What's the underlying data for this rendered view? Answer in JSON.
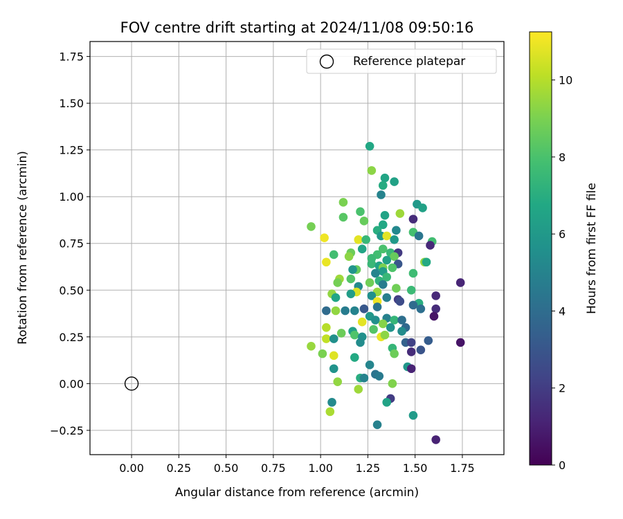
{
  "chart_data": {
    "type": "scatter",
    "title": "FOV centre drift starting at 2024/11/08 09:50:16",
    "xlabel": "Angular distance from reference (arcmin)",
    "ylabel": "Rotation from reference (arcmin)",
    "xlim": [
      -0.22,
      1.97
    ],
    "ylim": [
      -0.38,
      1.83
    ],
    "xticks": [
      0.0,
      0.25,
      0.5,
      0.75,
      1.0,
      1.25,
      1.5,
      1.75
    ],
    "xtick_labels": [
      "0.00",
      "0.25",
      "0.50",
      "0.75",
      "1.00",
      "1.25",
      "1.50",
      "1.75"
    ],
    "yticks": [
      -0.25,
      0.0,
      0.25,
      0.5,
      0.75,
      1.0,
      1.25,
      1.5,
      1.75
    ],
    "ytick_labels": [
      "−0.25",
      "0.00",
      "0.25",
      "0.50",
      "0.75",
      "1.00",
      "1.25",
      "1.50",
      "1.75"
    ],
    "grid": true,
    "legend": {
      "position": "top-right",
      "entries": [
        "Reference platepar"
      ]
    },
    "reference_point": {
      "x": 0.0,
      "y": 0.0
    },
    "colorbar": {
      "label": "Hours from first FF file",
      "min": 0,
      "max": 11.25,
      "ticks": [
        0,
        2,
        4,
        6,
        8,
        10
      ],
      "tick_labels": [
        "0",
        "2",
        "4",
        "6",
        "8",
        "10"
      ],
      "colormap": "viridis"
    },
    "points": [
      [
        1.26,
        1.27,
        6.7
      ],
      [
        1.27,
        1.14,
        9.3
      ],
      [
        1.34,
        1.1,
        6.6
      ],
      [
        1.39,
        1.08,
        6.4
      ],
      [
        1.33,
        1.06,
        6.9
      ],
      [
        1.32,
        1.01,
        5.0
      ],
      [
        1.51,
        0.96,
        6.0
      ],
      [
        1.54,
        0.94,
        6.4
      ],
      [
        1.12,
        0.97,
        9.0
      ],
      [
        1.21,
        0.92,
        8.0
      ],
      [
        1.42,
        0.91,
        9.6
      ],
      [
        1.34,
        0.9,
        6.5
      ],
      [
        1.12,
        0.89,
        8.3
      ],
      [
        1.23,
        0.87,
        8.6
      ],
      [
        1.49,
        0.88,
        1.4
      ],
      [
        0.95,
        0.84,
        8.9
      ],
      [
        1.33,
        0.85,
        6.7
      ],
      [
        1.3,
        0.82,
        7.0
      ],
      [
        1.4,
        0.82,
        5.2
      ],
      [
        1.32,
        0.79,
        6.0
      ],
      [
        1.35,
        0.79,
        10.8
      ],
      [
        1.49,
        0.81,
        7.9
      ],
      [
        1.52,
        0.79,
        4.4
      ],
      [
        1.02,
        0.78,
        11.0
      ],
      [
        1.2,
        0.77,
        10.8
      ],
      [
        1.24,
        0.77,
        7.5
      ],
      [
        1.39,
        0.77,
        6.0
      ],
      [
        1.59,
        0.76,
        7.8
      ],
      [
        1.58,
        0.74,
        1.3
      ],
      [
        1.16,
        0.7,
        8.7
      ],
      [
        1.22,
        0.72,
        6.6
      ],
      [
        1.33,
        0.72,
        8.0
      ],
      [
        1.37,
        0.7,
        7.5
      ],
      [
        1.41,
        0.7,
        1.9
      ],
      [
        1.3,
        0.69,
        7.8
      ],
      [
        1.15,
        0.68,
        9.3
      ],
      [
        1.07,
        0.69,
        7.8
      ],
      [
        1.39,
        0.68,
        8.6
      ],
      [
        1.27,
        0.67,
        7.6
      ],
      [
        1.35,
        0.66,
        6.4
      ],
      [
        1.03,
        0.65,
        10.9
      ],
      [
        1.55,
        0.65,
        9.4
      ],
      [
        1.56,
        0.65,
        6.8
      ],
      [
        1.27,
        0.64,
        7.5
      ],
      [
        1.31,
        0.63,
        6.5
      ],
      [
        1.41,
        0.64,
        3.0
      ],
      [
        1.33,
        0.62,
        9.0
      ],
      [
        1.38,
        0.62,
        8.1
      ],
      [
        1.19,
        0.61,
        8.6
      ],
      [
        1.17,
        0.61,
        5.8
      ],
      [
        1.33,
        0.6,
        6.2
      ],
      [
        1.29,
        0.59,
        5.1
      ],
      [
        1.49,
        0.59,
        7.7
      ],
      [
        1.35,
        0.57,
        7.5
      ],
      [
        1.1,
        0.56,
        9.6
      ],
      [
        1.16,
        0.56,
        8.2
      ],
      [
        1.31,
        0.55,
        7.2
      ],
      [
        1.09,
        0.54,
        8.9
      ],
      [
        1.26,
        0.54,
        8.8
      ],
      [
        1.33,
        0.53,
        4.7
      ],
      [
        1.4,
        0.51,
        8.8
      ],
      [
        1.48,
        0.5,
        7.6
      ],
      [
        1.2,
        0.52,
        5.3
      ],
      [
        1.19,
        0.49,
        10.6
      ],
      [
        1.3,
        0.49,
        9.5
      ],
      [
        1.16,
        0.48,
        6.2
      ],
      [
        1.06,
        0.48,
        9.4
      ],
      [
        1.08,
        0.46,
        6.6
      ],
      [
        1.27,
        0.47,
        5.6
      ],
      [
        1.3,
        0.44,
        11.0
      ],
      [
        1.35,
        0.46,
        4.8
      ],
      [
        1.41,
        0.45,
        2.0
      ],
      [
        1.42,
        0.44,
        2.6
      ],
      [
        1.52,
        0.43,
        7.0
      ],
      [
        1.61,
        0.47,
        1.3
      ],
      [
        1.61,
        0.4,
        1.4
      ],
      [
        1.03,
        0.39,
        3.9
      ],
      [
        1.08,
        0.39,
        9.4
      ],
      [
        1.13,
        0.39,
        4.7
      ],
      [
        1.18,
        0.39,
        5.0
      ],
      [
        1.23,
        0.4,
        3.1
      ],
      [
        1.3,
        0.41,
        4.3
      ],
      [
        1.49,
        0.42,
        3.9
      ],
      [
        1.53,
        0.4,
        4.1
      ],
      [
        1.6,
        0.36,
        0.6
      ],
      [
        1.26,
        0.36,
        5.9
      ],
      [
        1.35,
        0.35,
        4.9
      ],
      [
        1.22,
        0.33,
        10.8
      ],
      [
        1.29,
        0.34,
        5.6
      ],
      [
        1.39,
        0.34,
        7.4
      ],
      [
        1.43,
        0.34,
        4.1
      ],
      [
        1.33,
        0.32,
        9.2
      ],
      [
        1.03,
        0.3,
        10.0
      ],
      [
        1.37,
        0.3,
        5.7
      ],
      [
        1.45,
        0.3,
        3.8
      ],
      [
        1.17,
        0.28,
        6.3
      ],
      [
        1.28,
        0.29,
        8.2
      ],
      [
        1.43,
        0.28,
        5.4
      ],
      [
        1.11,
        0.27,
        8.7
      ],
      [
        1.18,
        0.26,
        8.1
      ],
      [
        1.22,
        0.25,
        5.6
      ],
      [
        1.32,
        0.25,
        10.9
      ],
      [
        1.34,
        0.26,
        9.3
      ],
      [
        1.03,
        0.24,
        10.2
      ],
      [
        1.07,
        0.24,
        5.6
      ],
      [
        1.21,
        0.22,
        5.4
      ],
      [
        1.45,
        0.22,
        3.5
      ],
      [
        1.48,
        0.22,
        2.2
      ],
      [
        1.57,
        0.23,
        3.3
      ],
      [
        1.74,
        0.22,
        0.6
      ],
      [
        0.95,
        0.2,
        9.5
      ],
      [
        1.48,
        0.17,
        1.4
      ],
      [
        1.53,
        0.18,
        2.9
      ],
      [
        1.38,
        0.19,
        7.4
      ],
      [
        1.01,
        0.16,
        9.0
      ],
      [
        1.07,
        0.15,
        10.7
      ],
      [
        1.18,
        0.14,
        6.8
      ],
      [
        1.39,
        0.16,
        8.7
      ],
      [
        1.26,
        0.1,
        5.1
      ],
      [
        1.46,
        0.09,
        5.9
      ],
      [
        1.48,
        0.08,
        1.1
      ],
      [
        1.07,
        0.08,
        5.7
      ],
      [
        1.29,
        0.05,
        4.3
      ],
      [
        1.31,
        0.04,
        4.6
      ],
      [
        1.21,
        0.03,
        7.0
      ],
      [
        1.23,
        0.03,
        5.0
      ],
      [
        1.09,
        0.01,
        9.4
      ],
      [
        1.38,
        0.0,
        9.1
      ],
      [
        1.2,
        -0.03,
        9.6
      ],
      [
        1.37,
        -0.08,
        2.0
      ],
      [
        1.06,
        -0.1,
        5.3
      ],
      [
        1.35,
        -0.1,
        6.5
      ],
      [
        1.05,
        -0.15,
        9.8
      ],
      [
        1.49,
        -0.17,
        6.1
      ],
      [
        1.3,
        -0.22,
        4.9
      ],
      [
        1.61,
        -0.3,
        1.1
      ],
      [
        1.74,
        0.54,
        1.2
      ]
    ]
  }
}
